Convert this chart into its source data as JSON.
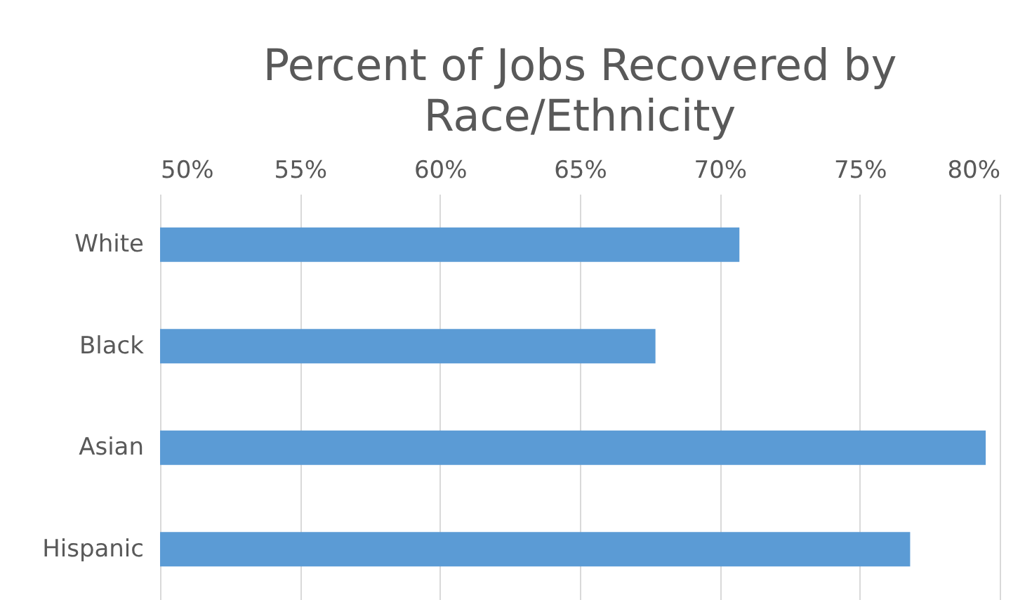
{
  "chart_data": {
    "type": "bar",
    "orientation": "horizontal",
    "title": "Percent of Jobs Recovered by Race/Ethnicity",
    "categories": [
      "White",
      "Black",
      "Asian",
      "Hispanic"
    ],
    "values": [
      70.7,
      67.7,
      79.5,
      76.8
    ],
    "color": "#5b9bd5",
    "xlim": [
      50,
      80
    ],
    "xticks": [
      {
        "value": 50,
        "label": "50%"
      },
      {
        "value": 55,
        "label": "55%"
      },
      {
        "value": 60,
        "label": "60%"
      },
      {
        "value": 65,
        "label": "65%"
      },
      {
        "value": 70,
        "label": "70%"
      },
      {
        "value": 75,
        "label": "75%"
      },
      {
        "value": 80,
        "label": "80%"
      }
    ],
    "grid": true
  }
}
